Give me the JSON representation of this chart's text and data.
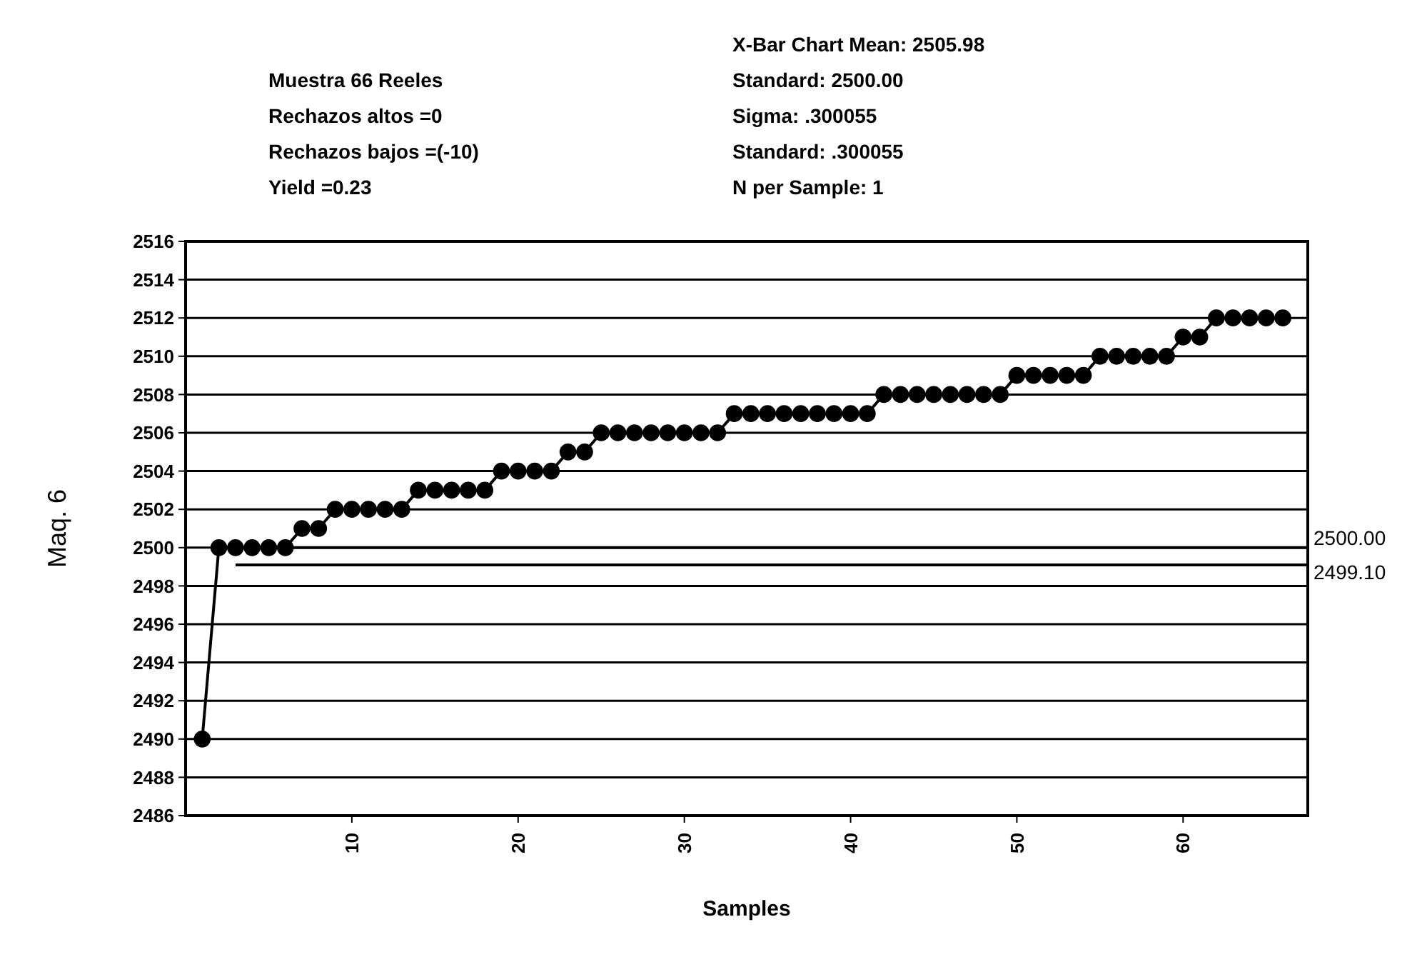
{
  "chart_data": {
    "type": "line",
    "xlabel": "Samples",
    "ylabel": "Maq. 6",
    "annotations": [
      "Muestra 66 Reeles",
      "Rechazos altos =0",
      "Rechazos bajos =(-10)",
      "Yield =0.23",
      "X-Bar Chart Mean: 2505.98",
      "Standard: 2500.00",
      "Sigma: .300055",
      "Standard: .300055",
      "N per Sample: 1"
    ],
    "x": [
      1,
      2,
      3,
      4,
      5,
      6,
      7,
      8,
      9,
      10,
      11,
      12,
      13,
      14,
      15,
      16,
      17,
      18,
      19,
      20,
      21,
      22,
      23,
      24,
      25,
      26,
      27,
      28,
      29,
      30,
      31,
      32,
      33,
      34,
      35,
      36,
      37,
      38,
      39,
      40,
      41,
      42,
      43,
      44,
      45,
      46,
      47,
      48,
      49,
      50,
      51,
      52,
      53,
      54,
      55,
      56,
      57,
      58,
      59,
      60,
      61,
      62,
      63,
      64,
      65,
      66
    ],
    "series": [
      {
        "color": "#000000",
        "values": [
          2490,
          2500,
          2500,
          2500,
          2500,
          2500,
          2501,
          2501,
          2502,
          2502,
          2502,
          2502,
          2502,
          2503,
          2503,
          2503,
          2503,
          2503,
          2504,
          2504,
          2504,
          2504,
          2505,
          2505,
          2506,
          2506,
          2506,
          2506,
          2506,
          2506,
          2506,
          2506,
          2507,
          2507,
          2507,
          2507,
          2507,
          2507,
          2507,
          2507,
          2507,
          2508,
          2508,
          2508,
          2508,
          2508,
          2508,
          2508,
          2508,
          2509,
          2509,
          2509,
          2509,
          2509,
          2510,
          2510,
          2510,
          2510,
          2510,
          2511,
          2511,
          2512,
          2512,
          2512,
          2512,
          2512
        ]
      }
    ],
    "xlim": [
      0,
      67.5
    ],
    "xticks": [
      10,
      20,
      30,
      40,
      50,
      60
    ],
    "ylim": [
      2486,
      2516
    ],
    "yticks": [
      2486,
      2488,
      2490,
      2492,
      2494,
      2496,
      2498,
      2500,
      2502,
      2504,
      2506,
      2508,
      2510,
      2512,
      2514,
      2516
    ],
    "ref_lines": [
      {
        "axis": "y",
        "value": 2500.0,
        "label": "2500.00",
        "color": "#000000"
      },
      {
        "axis": "y",
        "value": 2499.1,
        "label": "2499.10",
        "color": "#000000"
      }
    ],
    "grid": "y",
    "marker": "circle",
    "line_style": "solid"
  }
}
